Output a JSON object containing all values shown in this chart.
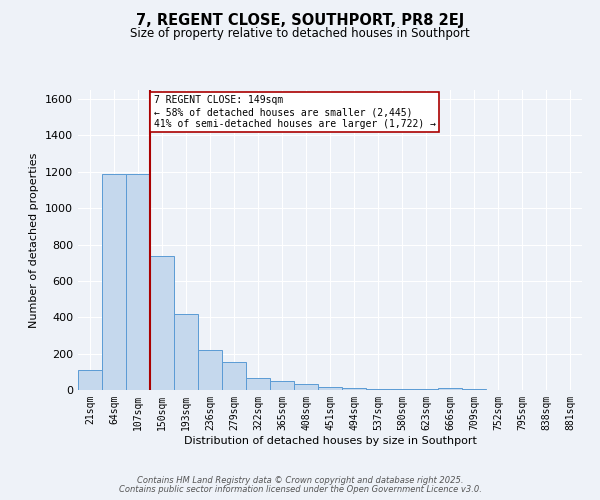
{
  "title": "7, REGENT CLOSE, SOUTHPORT, PR8 2EJ",
  "subtitle": "Size of property relative to detached houses in Southport",
  "xlabel": "Distribution of detached houses by size in Southport",
  "ylabel": "Number of detached properties",
  "categories": [
    "21sqm",
    "64sqm",
    "107sqm",
    "150sqm",
    "193sqm",
    "236sqm",
    "279sqm",
    "322sqm",
    "365sqm",
    "408sqm",
    "451sqm",
    "494sqm",
    "537sqm",
    "580sqm",
    "623sqm",
    "666sqm",
    "709sqm",
    "752sqm",
    "795sqm",
    "838sqm",
    "881sqm"
  ],
  "values": [
    110,
    1190,
    1190,
    735,
    420,
    220,
    155,
    65,
    50,
    35,
    15,
    10,
    8,
    8,
    5,
    10,
    5,
    0,
    0,
    0,
    0
  ],
  "bar_color": "#c5d8ed",
  "bar_edge_color": "#5b9bd5",
  "background_color": "#eef2f8",
  "grid_color": "#ffffff",
  "vline_color": "#aa0000",
  "annotation_text": "7 REGENT CLOSE: 149sqm\n← 58% of detached houses are smaller (2,445)\n41% of semi-detached houses are larger (1,722) →",
  "annotation_box_color": "#ffffff",
  "annotation_box_edge": "#aa0000",
  "ylim": [
    0,
    1650
  ],
  "yticks": [
    0,
    200,
    400,
    600,
    800,
    1000,
    1200,
    1400,
    1600
  ],
  "footer1": "Contains HM Land Registry data © Crown copyright and database right 2025.",
  "footer2": "Contains public sector information licensed under the Open Government Licence v3.0."
}
